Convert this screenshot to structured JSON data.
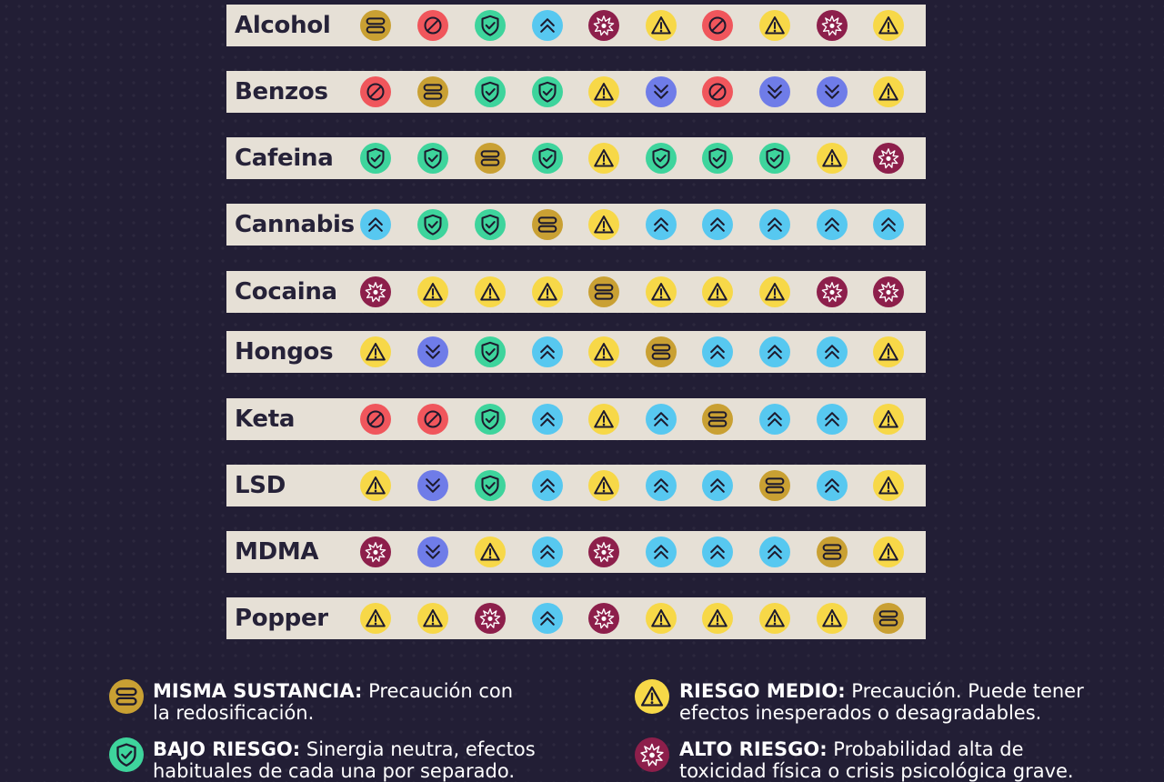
{
  "icon_colors": {
    "same": "#c9a033",
    "low": "#3ed49c",
    "up": "#57c8f0",
    "down": "#6f7ce8",
    "caution": "#f7d848",
    "high": "#8d1f4b",
    "danger": "#f0565c"
  },
  "icon_names": {
    "same": "equal-bars-icon",
    "low": "shield-check-icon",
    "up": "double-chevron-up-icon",
    "down": "double-chevron-down-icon",
    "caution": "warning-triangle-icon",
    "high": "explosion-icon",
    "danger": "prohibited-icon"
  },
  "rows": [
    {
      "label": "Alcohol",
      "cells": [
        "same",
        "danger",
        "low",
        "up",
        "high",
        "caution",
        "danger",
        "caution",
        "high",
        "caution"
      ]
    },
    {
      "label": "Benzos",
      "cells": [
        "danger",
        "same",
        "low",
        "low",
        "caution",
        "down",
        "danger",
        "down",
        "down",
        "caution"
      ]
    },
    {
      "label": "Cafeina",
      "cells": [
        "low",
        "low",
        "same",
        "low",
        "caution",
        "low",
        "low",
        "low",
        "caution",
        "high"
      ]
    },
    {
      "label": "Cannabis",
      "cells": [
        "up",
        "low",
        "low",
        "same",
        "caution",
        "up",
        "up",
        "up",
        "up",
        "up"
      ]
    },
    {
      "label": "Cocaina",
      "cells": [
        "high",
        "caution",
        "caution",
        "caution",
        "same",
        "caution",
        "caution",
        "caution",
        "high",
        "high"
      ]
    },
    {
      "label": "Hongos",
      "cells": [
        "caution",
        "down",
        "low",
        "up",
        "caution",
        "same",
        "up",
        "up",
        "up",
        "caution"
      ]
    },
    {
      "label": "Keta",
      "cells": [
        "danger",
        "danger",
        "low",
        "up",
        "caution",
        "up",
        "same",
        "up",
        "up",
        "caution"
      ]
    },
    {
      "label": "LSD",
      "cells": [
        "caution",
        "down",
        "low",
        "up",
        "caution",
        "up",
        "up",
        "same",
        "up",
        "caution"
      ]
    },
    {
      "label": "MDMA",
      "cells": [
        "high",
        "down",
        "caution",
        "up",
        "high",
        "up",
        "up",
        "up",
        "same",
        "caution"
      ]
    },
    {
      "label": "Popper",
      "cells": [
        "caution",
        "caution",
        "high",
        "up",
        "high",
        "caution",
        "caution",
        "caution",
        "caution",
        "same"
      ]
    }
  ],
  "legend": [
    {
      "type": "same",
      "title": "MISMA SUSTANCIA:",
      "line1": " Precaución con",
      "line2": "la redosificación."
    },
    {
      "type": "caution",
      "title": "RIESGO MEDIO:",
      "line1": " Precaución. Puede tener",
      "line2": "efectos inesperados o desagradables."
    },
    {
      "type": "low",
      "title": "BAJO RIESGO:",
      "line1": " Sinergia neutra, efectos",
      "line2": "habituales de cada una por separado."
    },
    {
      "type": "high",
      "title": "ALTO RIESGO:",
      "line1": " Probabilidad alta de",
      "line2": "toxicidad física o crisis psicológica grave."
    }
  ]
}
